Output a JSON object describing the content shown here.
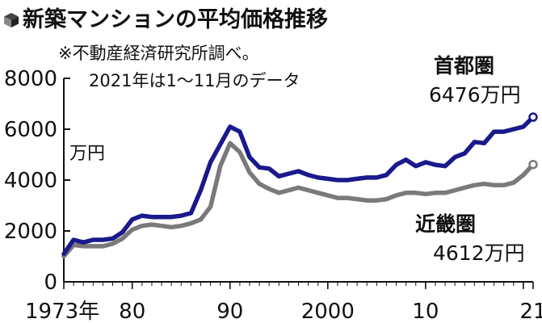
{
  "header": {
    "title": "新築マンションの平均価格推移",
    "source": "※不動産経済研究所調べ。",
    "note": "2021年は1～11月のデータ",
    "unit": "万円"
  },
  "labels": {
    "tokyo_name": "首都圏",
    "tokyo_value": "6476万円",
    "kinki_name": "近畿圏",
    "kinki_value": "4612万円"
  },
  "colors": {
    "tokyo": "#1a1a8c",
    "kinki": "#7a7a7a",
    "axis": "#111111"
  },
  "chart_data": {
    "type": "line",
    "title": "新築マンションの平均価格推移",
    "xlabel": "",
    "ylabel": "万円",
    "xlim": [
      1973,
      2021
    ],
    "ylim": [
      0,
      8000
    ],
    "yticks": [
      0,
      2000,
      4000,
      6000,
      8000
    ],
    "ytick_labels": [
      "0",
      "2000",
      "4000",
      "6000",
      "8000"
    ],
    "xticks": [
      1973,
      1980,
      1990,
      2000,
      2010,
      2021
    ],
    "xtick_labels": [
      "1973年",
      "80",
      "90",
      "2000",
      "10",
      "21"
    ],
    "series": [
      {
        "name": "首都圏",
        "end_label": "6476万円",
        "x": [
          1973,
          1974,
          1975,
          1976,
          1977,
          1978,
          1979,
          1980,
          1981,
          1982,
          1983,
          1984,
          1985,
          1986,
          1987,
          1988,
          1989,
          1990,
          1991,
          1992,
          1993,
          1994,
          1995,
          1996,
          1997,
          1998,
          1999,
          2000,
          2001,
          2002,
          2003,
          2004,
          2005,
          2006,
          2007,
          2008,
          2009,
          2010,
          2011,
          2012,
          2013,
          2014,
          2015,
          2016,
          2017,
          2018,
          2019,
          2020,
          2021
        ],
        "values": [
          1100,
          1650,
          1550,
          1650,
          1650,
          1700,
          1950,
          2450,
          2600,
          2550,
          2550,
          2550,
          2600,
          2700,
          3600,
          4700,
          5400,
          6100,
          5900,
          4900,
          4500,
          4450,
          4150,
          4250,
          4350,
          4200,
          4100,
          4050,
          4000,
          4000,
          4050,
          4100,
          4100,
          4200,
          4600,
          4800,
          4550,
          4700,
          4600,
          4550,
          4900,
          5050,
          5500,
          5450,
          5900,
          5900,
          6000,
          6100,
          6476
        ]
      },
      {
        "name": "近畿圏",
        "end_label": "4612万円",
        "x": [
          1973,
          1974,
          1975,
          1976,
          1977,
          1978,
          1979,
          1980,
          1981,
          1982,
          1983,
          1984,
          1985,
          1986,
          1987,
          1988,
          1989,
          1990,
          1991,
          1992,
          1993,
          1994,
          1995,
          1996,
          1997,
          1998,
          1999,
          2000,
          2001,
          2002,
          2003,
          2004,
          2005,
          2006,
          2007,
          2008,
          2009,
          2010,
          2011,
          2012,
          2013,
          2014,
          2015,
          2016,
          2017,
          2018,
          2019,
          2020,
          2021
        ],
        "values": [
          1000,
          1450,
          1400,
          1400,
          1400,
          1500,
          1700,
          2050,
          2200,
          2250,
          2200,
          2150,
          2200,
          2300,
          2450,
          2950,
          4550,
          5450,
          5100,
          4300,
          3850,
          3650,
          3500,
          3600,
          3700,
          3600,
          3500,
          3400,
          3300,
          3300,
          3250,
          3200,
          3200,
          3250,
          3400,
          3500,
          3500,
          3450,
          3500,
          3500,
          3600,
          3700,
          3800,
          3850,
          3800,
          3800,
          3900,
          4200,
          4612
        ]
      }
    ]
  }
}
